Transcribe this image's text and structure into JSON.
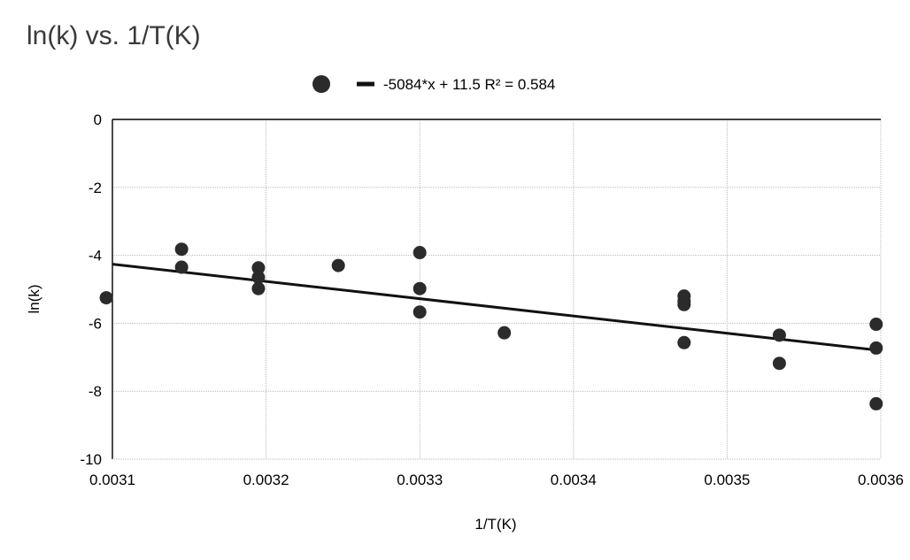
{
  "chart_data": {
    "type": "scatter",
    "title": "ln(k) vs. 1/T(K)",
    "xlabel": "1/T(K)",
    "ylabel": "ln(k)",
    "xlim": [
      0.0031,
      0.0036
    ],
    "ylim": [
      -10,
      0
    ],
    "xticks": [
      "0.0031",
      "0.0032",
      "0.0033",
      "0.0034",
      "0.0035",
      "0.0036"
    ],
    "yticks": [
      "0",
      "-2",
      "-4",
      "-6",
      "-8",
      "-10"
    ],
    "grid": true,
    "legend_position": "top-center",
    "legend_label": "-5084*x + 11.5 R² = 0.584",
    "trendline": {
      "slope": -5084,
      "intercept": 11.5,
      "r2": 0.584
    },
    "marker_color": "#2b2b2b",
    "points": [
      {
        "x": 0.003096,
        "y": -5.25
      },
      {
        "x": 0.003145,
        "y": -3.82
      },
      {
        "x": 0.003145,
        "y": -4.35
      },
      {
        "x": 0.003195,
        "y": -4.37
      },
      {
        "x": 0.003195,
        "y": -4.65
      },
      {
        "x": 0.003195,
        "y": -4.98
      },
      {
        "x": 0.003247,
        "y": -4.3
      },
      {
        "x": 0.0033,
        "y": -3.92
      },
      {
        "x": 0.0033,
        "y": -4.98
      },
      {
        "x": 0.0033,
        "y": -5.67
      },
      {
        "x": 0.003355,
        "y": -6.28
      },
      {
        "x": 0.003472,
        "y": -5.2
      },
      {
        "x": 0.003472,
        "y": -5.35
      },
      {
        "x": 0.003472,
        "y": -5.45
      },
      {
        "x": 0.003472,
        "y": -6.57
      },
      {
        "x": 0.003534,
        "y": -6.35
      },
      {
        "x": 0.003534,
        "y": -7.18
      },
      {
        "x": 0.003597,
        "y": -6.03
      },
      {
        "x": 0.003597,
        "y": -6.73
      },
      {
        "x": 0.003597,
        "y": -8.37
      }
    ]
  }
}
